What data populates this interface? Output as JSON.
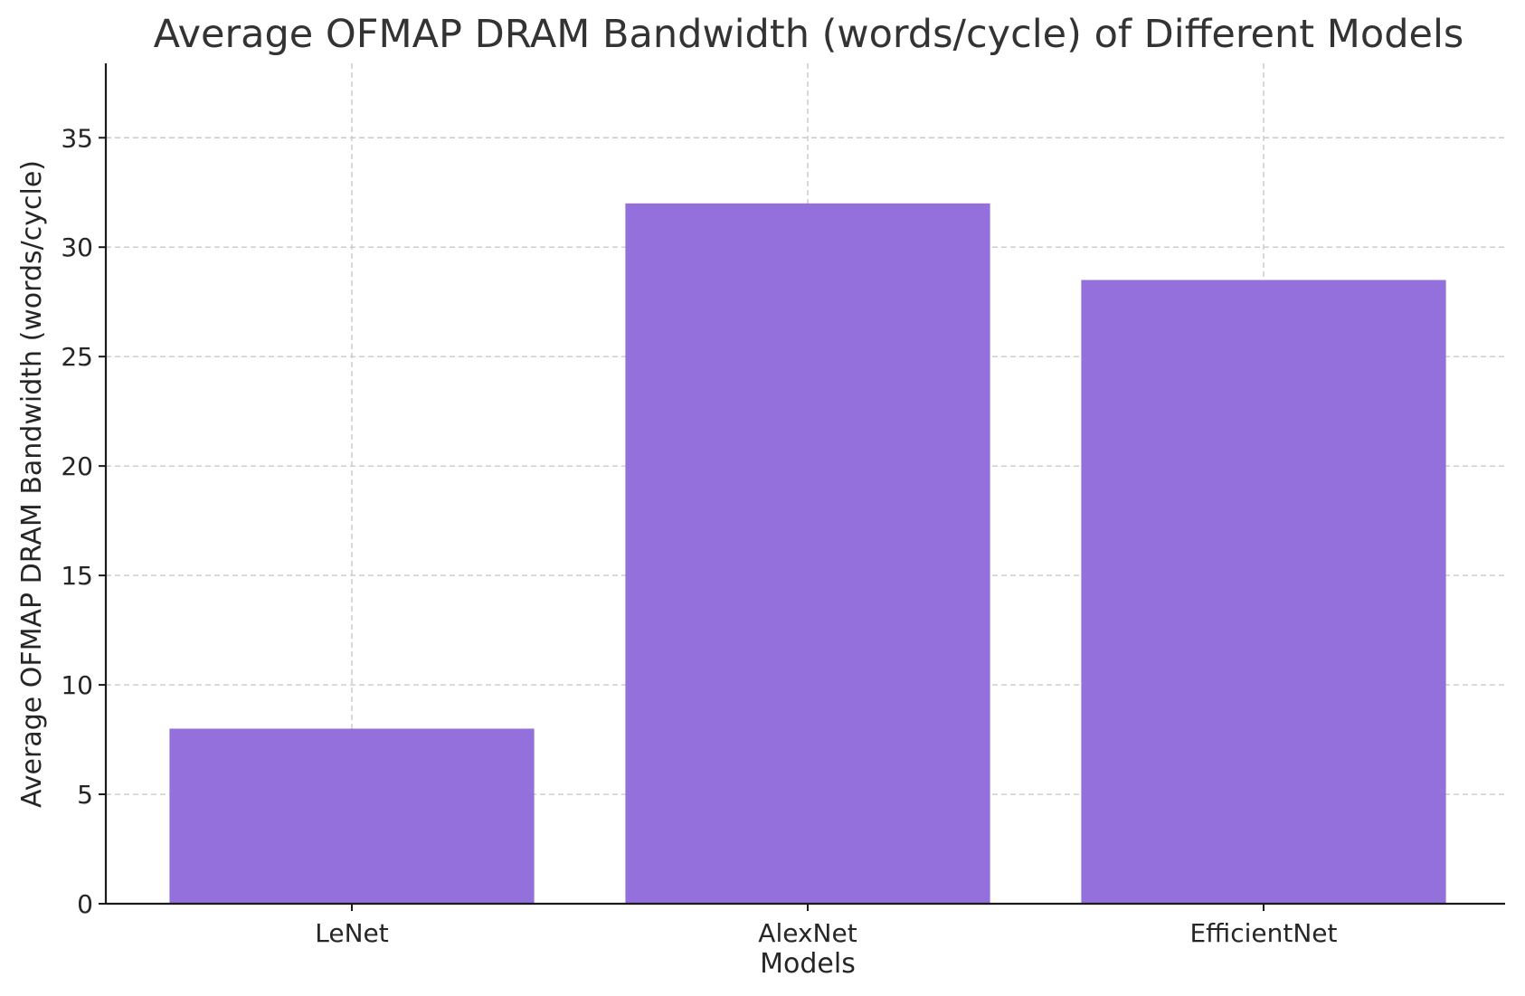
{
  "chart_data": {
    "type": "bar",
    "title": "Average OFMAP DRAM Bandwidth (words/cycle) of Different Models",
    "xlabel": "Models",
    "ylabel": "Average OFMAP DRAM Bandwidth (words/cycle)",
    "categories": [
      "LeNet",
      "AlexNet",
      "EfficientNet"
    ],
    "values": [
      8,
      32,
      28.5
    ],
    "ylim": [
      0,
      38.4
    ],
    "yticks": [
      0,
      5,
      10,
      15,
      20,
      25,
      30,
      35
    ],
    "grid": true,
    "bar_color": "#9370DB",
    "legend": null
  }
}
